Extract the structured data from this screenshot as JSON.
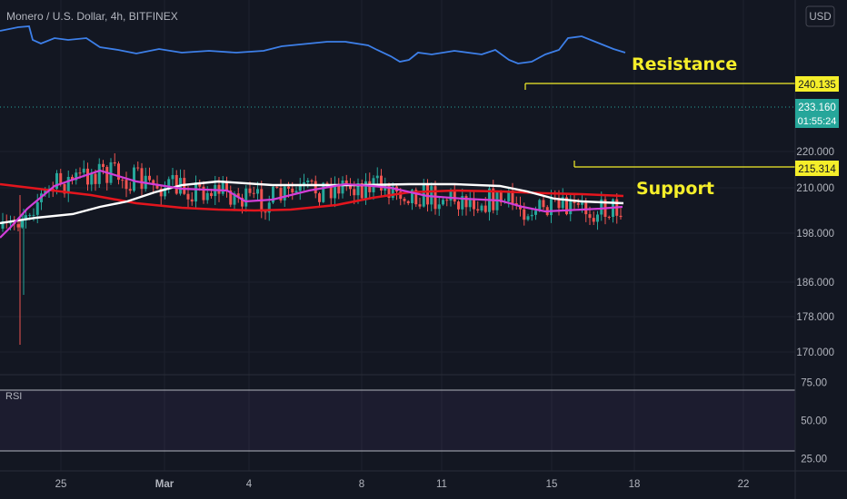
{
  "header": {
    "title": "Monero / U.S. Dollar, 4h, BITFINEX",
    "currency_button": "USD"
  },
  "annotations": {
    "resistance_label": "Resistance",
    "support_label": "Support"
  },
  "price_badges": {
    "resistance": "240.135",
    "last": "233.160",
    "countdown": "01:55:24",
    "support": "215.314"
  },
  "rsi_pane": {
    "label": "RSI",
    "upper": 70,
    "lower": 30
  },
  "colors": {
    "background": "#131722",
    "up_candle": "#26a69a",
    "down_candle": "#ef5350",
    "ma_fast": "#d23ed9",
    "ma_mid": "#ffffff",
    "ma_slow": "#e3151d",
    "rsi_line": "#3d7fe8",
    "level": "#f5ee2a"
  },
  "chart_data": {
    "type": "candlestick",
    "title": "Monero / U.S. Dollar, 4h, BITFINEX",
    "x_ticks": [
      "25",
      "Mar",
      "4",
      "8",
      "11",
      "15",
      "18",
      "22"
    ],
    "y_ticks": [
      170.0,
      178.0,
      186.0,
      198.0,
      210.0,
      220.0
    ],
    "price_scale": "log",
    "levels": [
      {
        "name": "Resistance",
        "value": 240.135
      },
      {
        "name": "Support",
        "value": 215.314
      }
    ],
    "last_price": 233.16,
    "ma_fast_anchors": [
      [
        0,
        262
      ],
      [
        12,
        250
      ],
      [
        30,
        230
      ],
      [
        60,
        205
      ],
      [
        80,
        198
      ],
      [
        110,
        188
      ],
      [
        150,
        200
      ],
      [
        200,
        208
      ],
      [
        250,
        210
      ],
      [
        270,
        222
      ],
      [
        300,
        220
      ],
      [
        340,
        210
      ],
      [
        380,
        203
      ],
      [
        410,
        205
      ],
      [
        430,
        207
      ],
      [
        470,
        216
      ],
      [
        510,
        219
      ],
      [
        550,
        221
      ],
      [
        575,
        228
      ],
      [
        600,
        233
      ],
      [
        620,
        232
      ],
      [
        660,
        230
      ],
      [
        685,
        228
      ]
    ],
    "ma_mid_anchors": [
      [
        0,
        246
      ],
      [
        40,
        240
      ],
      [
        80,
        236
      ],
      [
        110,
        228
      ],
      [
        140,
        222
      ],
      [
        170,
        212
      ],
      [
        200,
        204
      ],
      [
        240,
        200
      ],
      [
        300,
        204
      ],
      [
        400,
        204
      ],
      [
        450,
        203
      ],
      [
        500,
        203
      ],
      [
        550,
        205
      ],
      [
        580,
        211
      ],
      [
        610,
        219
      ],
      [
        640,
        222
      ],
      [
        686,
        224
      ]
    ],
    "ma_slow_anchors": [
      [
        0,
        203
      ],
      [
        50,
        209
      ],
      [
        100,
        215
      ],
      [
        150,
        224
      ],
      [
        200,
        229
      ],
      [
        240,
        231
      ],
      [
        280,
        232
      ],
      [
        320,
        231
      ],
      [
        370,
        226
      ],
      [
        410,
        218
      ],
      [
        450,
        212
      ],
      [
        500,
        210
      ],
      [
        550,
        211
      ],
      [
        600,
        213
      ],
      [
        640,
        214
      ],
      [
        686,
        216
      ]
    ],
    "rsi_anchors": [
      [
        0,
        34
      ],
      [
        20,
        30
      ],
      [
        32,
        29
      ],
      [
        36,
        44
      ],
      [
        45,
        48
      ],
      [
        60,
        42
      ],
      [
        75,
        44
      ],
      [
        95,
        42
      ],
      [
        110,
        52
      ],
      [
        130,
        55
      ],
      [
        150,
        59
      ],
      [
        175,
        54
      ],
      [
        200,
        58
      ],
      [
        230,
        56
      ],
      [
        260,
        58
      ],
      [
        290,
        56
      ],
      [
        310,
        51
      ],
      [
        340,
        48
      ],
      [
        360,
        46
      ],
      [
        380,
        46
      ],
      [
        405,
        50
      ],
      [
        415,
        55
      ],
      [
        430,
        62
      ],
      [
        440,
        68
      ],
      [
        450,
        66
      ],
      [
        460,
        58
      ],
      [
        475,
        60
      ],
      [
        500,
        56
      ],
      [
        530,
        60
      ],
      [
        545,
        55
      ],
      [
        560,
        66
      ],
      [
        570,
        70
      ],
      [
        585,
        68
      ],
      [
        600,
        60
      ],
      [
        615,
        55
      ],
      [
        625,
        42
      ],
      [
        640,
        40
      ],
      [
        660,
        48
      ],
      [
        675,
        54
      ],
      [
        688,
        58
      ]
    ]
  }
}
